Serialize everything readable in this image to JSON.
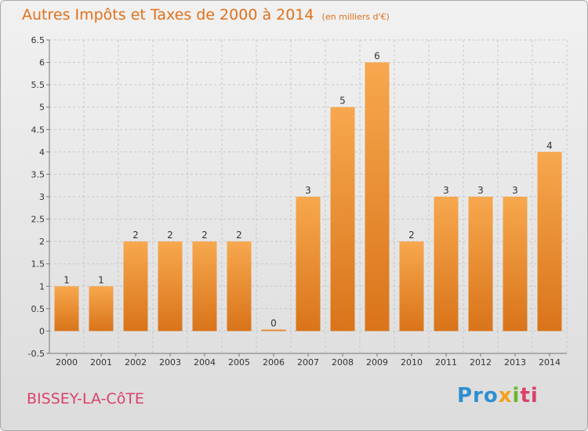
{
  "header": {
    "title": "Autres Impôts et Taxes de 2000 à 2014",
    "unit": "(en milliers d'€)"
  },
  "footer": {
    "town": "BISSEY-LA-CôTE",
    "logo": [
      "Pro",
      "x",
      "i",
      "ti"
    ]
  },
  "colors": {
    "bar_light": "#f7a84e",
    "bar_dark": "#d9741a",
    "title": "#e0701a",
    "town": "#d9426a",
    "grid": "#c8c8c8"
  },
  "chart_data": {
    "type": "bar",
    "title": "Autres Impôts et Taxes de 2000 à 2014",
    "subtitle": "(en milliers d'€)",
    "categories": [
      "2000",
      "2001",
      "2002",
      "2003",
      "2004",
      "2005",
      "2006",
      "2007",
      "2008",
      "2009",
      "2010",
      "2011",
      "2012",
      "2013",
      "2014"
    ],
    "values": [
      1,
      1,
      2,
      2,
      2,
      2,
      0,
      3,
      5,
      6,
      2,
      3,
      3,
      3,
      4
    ],
    "labels": [
      "1",
      "1",
      "2",
      "2",
      "2",
      "2",
      "0",
      "3",
      "5",
      "6",
      "2",
      "3",
      "3",
      "3",
      "4"
    ],
    "ylim": [
      -0.5,
      6.5
    ],
    "yticks": [
      -0.5,
      0,
      0.5,
      1,
      1.5,
      2,
      2.5,
      3,
      3.5,
      4,
      4.5,
      5,
      5.5,
      6,
      6.5
    ],
    "ytick_labels": [
      "-0.5",
      "0",
      "0.5",
      "1",
      "1.5",
      "2",
      "2.5",
      "3",
      "3.5",
      "4",
      "4.5",
      "5",
      "5.5",
      "6",
      "6.5"
    ],
    "grid": true
  }
}
